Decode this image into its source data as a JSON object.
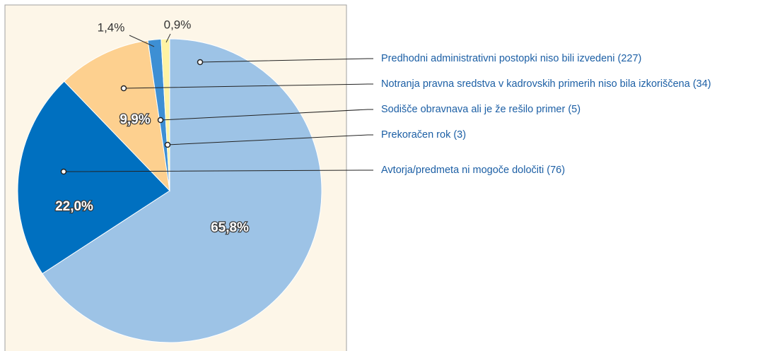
{
  "chart_data": {
    "type": "pie",
    "categories": [
      "Predhodni administrativni postopki niso bili izvedeni (227)",
      "Notranja pravna sredstva v kadrovskih primerih niso bila izkoriščena (34)",
      "Sodišče obravnava ali je že rešilo primer (5)",
      "Prekoračen rok (3)",
      "Avtorja/predmeta ni mogoče določiti (76)"
    ],
    "values": [
      65.8,
      9.9,
      1.4,
      0.9,
      22.0
    ],
    "value_labels": [
      "65,8%",
      "9,9%",
      "1,4%",
      "0,9%",
      "22,0%"
    ],
    "colors": [
      "#9dc3e6",
      "#fdd08f",
      "#3d8fd4",
      "#fff3a3",
      "#0070c0"
    ]
  }
}
